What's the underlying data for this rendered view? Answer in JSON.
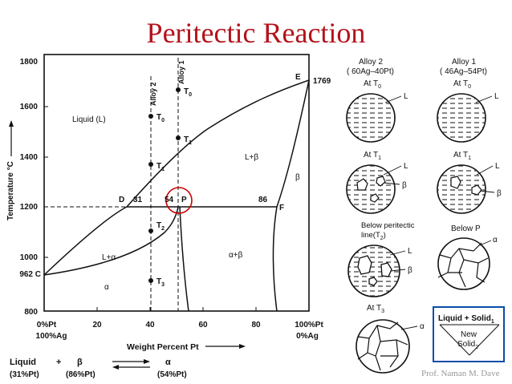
{
  "title": "Peritectic Reaction",
  "credit": "Prof. Naman M. Dave",
  "diagram": {
    "y_axis_label": "Temperature °C",
    "x_axis_label": "Weight Percent Pt",
    "y_ticks": [
      "1800",
      "1600",
      "1400",
      "1200",
      "1000",
      "800"
    ],
    "y_extra_tick": "962 C",
    "x_ticks_top": [
      "0%Pt",
      "20",
      "40",
      "60",
      "80",
      "100%Pt"
    ],
    "x_ticks_bottom": [
      "100%Ag",
      "0%Ag"
    ],
    "label_E": "E",
    "label_1769": "1769",
    "label_D": "D",
    "label_31": "31",
    "label_54": "54",
    "label_P": "P",
    "label_86": "86",
    "label_F": "F",
    "label_liquid": "Liquid (L)",
    "label_alloy2_vert": "Alloy 2",
    "label_alloy1_vert": "Alloy 1",
    "label_T0_a1": "T",
    "label_T0_a1_sub": "0",
    "label_T0_a2": "T",
    "label_T0_a2_sub": "0",
    "label_T1_a1": "T",
    "label_T1_a1_sub": "1",
    "label_T1_a2": "T",
    "label_T1_a2_sub": "1",
    "label_T2": "T",
    "label_T2_sub": "2",
    "label_T3": "T",
    "label_T3_sub": "3",
    "label_Lbeta": "L+β",
    "label_beta": "β",
    "label_Lalpha": "L+α",
    "label_alphabeta": "α+β",
    "label_alpha": "α"
  },
  "reaction": {
    "liquid": "Liquid",
    "plus": "+",
    "beta": "β",
    "alpha": "α",
    "liquid_comp": "(31%Pt)",
    "beta_comp": "(86%Pt)",
    "alpha_comp": "(54%Pt)"
  },
  "microstructures": {
    "alloy2_header_line1": "Alloy 2",
    "alloy2_header_line2": "( 60Ag–40Pt)",
    "alloy1_header_line1": "Alloy 1",
    "alloy1_header_line2": "( 46Ag–54Pt)",
    "at_T0_left": "At T",
    "at_T0_left_sub": "0",
    "at_T0_right": "At T",
    "at_T0_right_sub": "0",
    "at_T1_left": "At T",
    "at_T1_left_sub": "1",
    "at_T1_right": "At T",
    "at_T1_right_sub": "1",
    "below_peritectic_line1": "Below peritectic",
    "below_peritectic_line2": "line(T",
    "below_peritectic_sub": "2",
    "below_P": "Below P",
    "at_T3": "At T",
    "at_T3_sub": "3",
    "L": "L",
    "beta": "β",
    "alpha": "α"
  },
  "legend_box": {
    "line1": "Liquid + Solid",
    "line1_sub": "1",
    "line2": "New",
    "line3": "Solid",
    "line3_sub": "2"
  }
}
